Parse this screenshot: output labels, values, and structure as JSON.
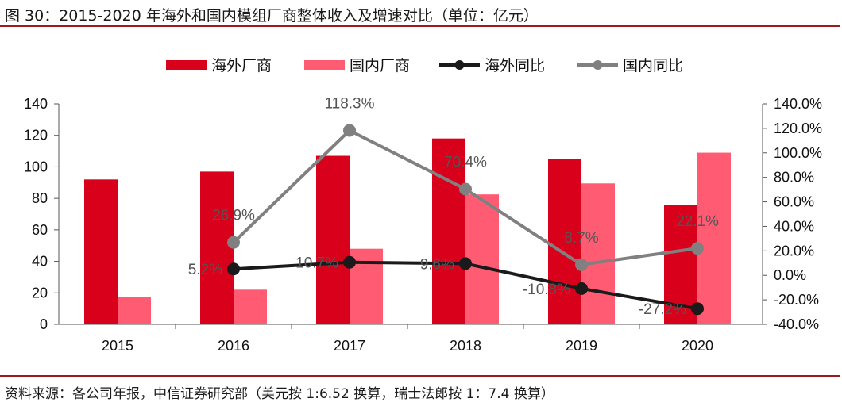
{
  "header": {
    "title": "图 30：2015-2020 年海外和国内模组厂商整体收入及增速对比（单位：亿元）"
  },
  "footer": {
    "source": "资料来源：各公司年报，中信证券研究部（美元按 1:6.52 换算，瑞士法郎按 1：7.4 换算）"
  },
  "colors": {
    "overseas_bar": "#d9001b",
    "domestic_bar": "#ff5c73",
    "overseas_line": "#1a1a1a",
    "domestic_line": "#808080",
    "rule": "#9b1b20"
  },
  "chart_data": {
    "type": "bar",
    "title": "2015-2020 年海外和国内模组厂商整体收入及增速对比（单位：亿元）",
    "categories": [
      "2015",
      "2016",
      "2017",
      "2018",
      "2019",
      "2020"
    ],
    "y_left": {
      "range": [
        0,
        140
      ],
      "ticks": [
        "0",
        "20",
        "40",
        "60",
        "80",
        "100",
        "120",
        "140"
      ],
      "tick_values": [
        0,
        20,
        40,
        60,
        80,
        100,
        120,
        140
      ]
    },
    "y_right": {
      "range": [
        -40,
        140
      ],
      "ticks": [
        "-40.0%",
        "-20.0%",
        "0.0%",
        "20.0%",
        "40.0%",
        "60.0%",
        "80.0%",
        "100.0%",
        "120.0%",
        "140.0%"
      ],
      "tick_values": [
        -40,
        -20,
        0,
        20,
        40,
        60,
        80,
        100,
        120,
        140
      ]
    },
    "legend": {
      "placement": "top",
      "items": [
        {
          "label": "海外厂商",
          "kind": "bar",
          "series": "overseas"
        },
        {
          "label": "国内厂商",
          "kind": "bar",
          "series": "domestic"
        },
        {
          "label": "海外同比",
          "kind": "line",
          "series": "overseas_yoy"
        },
        {
          "label": "国内同比",
          "kind": "line",
          "series": "domestic_yoy"
        }
      ]
    },
    "series": [
      {
        "name": "海外厂商",
        "key": "overseas",
        "type": "bar",
        "axis": "left",
        "values": [
          92,
          97,
          107,
          118,
          105,
          76
        ]
      },
      {
        "name": "国内厂商",
        "key": "domestic",
        "type": "bar",
        "axis": "left",
        "values": [
          17.5,
          22,
          48,
          82.5,
          89.5,
          109
        ]
      },
      {
        "name": "海外同比",
        "key": "overseas_yoy",
        "type": "line",
        "axis": "right",
        "values": [
          null,
          5.2,
          10.7,
          9.6,
          -10.8,
          -27.2
        ],
        "labels": [
          null,
          "5.2%",
          "10.7%",
          "9.6%",
          "-10.8%",
          "-27.2%"
        ]
      },
      {
        "name": "国内同比",
        "key": "domestic_yoy",
        "type": "line",
        "axis": "right",
        "values": [
          null,
          26.9,
          118.3,
          70.4,
          8.7,
          22.1
        ],
        "labels": [
          null,
          "26.9%",
          "118.3%",
          "70.4%",
          "8.7%",
          "22.1%"
        ]
      }
    ],
    "grid": false
  }
}
